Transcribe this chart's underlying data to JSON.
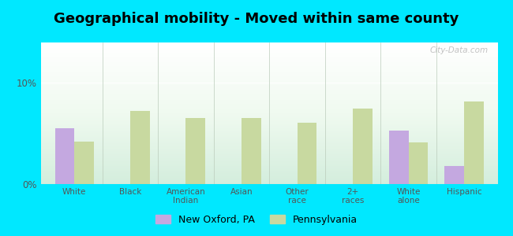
{
  "title": "Geographical mobility - Moved within same county",
  "categories": [
    "White",
    "Black",
    "American\nIndian",
    "Asian",
    "Other\nrace",
    "2+\nraces",
    "White\nalone",
    "Hispanic"
  ],
  "new_oxford_values": [
    5.5,
    null,
    null,
    null,
    null,
    null,
    5.3,
    1.8
  ],
  "pennsylvania_values": [
    4.2,
    7.2,
    6.5,
    6.5,
    6.1,
    7.5,
    4.1,
    8.2
  ],
  "bar_color_oxford": "#c4a8e0",
  "bar_color_pa": "#c8d9a0",
  "background_outer": "#00e8ff",
  "ylim": [
    0,
    14
  ],
  "yticks": [
    0,
    10
  ],
  "ytick_labels": [
    "0%",
    "10%"
  ],
  "legend_oxford": "New Oxford, PA",
  "legend_pa": "Pennsylvania",
  "title_fontsize": 13,
  "bar_width": 0.35,
  "watermark": "City-Data.com"
}
